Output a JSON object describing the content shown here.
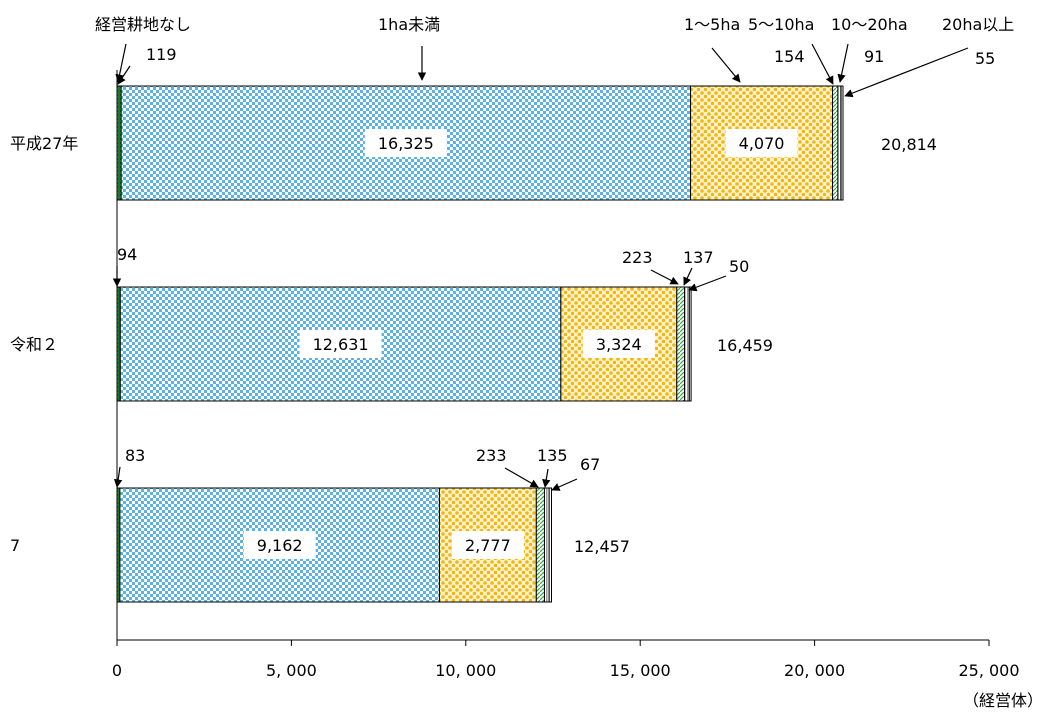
{
  "chart_data": {
    "type": "bar",
    "orientation": "horizontal",
    "stacked": true,
    "categories": [
      "平成27年",
      "令和２",
      "7"
    ],
    "series": [
      {
        "name": "経営耕地なし",
        "values": [
          119,
          94,
          83
        ],
        "color": "#1a7a2a"
      },
      {
        "name": "1ha未満",
        "values": [
          16325,
          12631,
          9162
        ],
        "color": "#66b8e8"
      },
      {
        "name": "1～5ha",
        "values": [
          4070,
          3324,
          2777
        ],
        "color": "#f5b820"
      },
      {
        "name": "5～10ha",
        "values": [
          154,
          223,
          233
        ],
        "color": "#7fd07f"
      },
      {
        "name": "10～20ha",
        "values": [
          91,
          137,
          135
        ],
        "color": "#d9d9d9"
      },
      {
        "name": "20ha以上",
        "values": [
          55,
          50,
          67
        ],
        "color": "#ffffff"
      }
    ],
    "totals": [
      "20,814",
      "16,459",
      "12,457"
    ],
    "value_labels": [
      {
        "inner": [
          "16,325",
          "4,070"
        ],
        "outer": [
          "119",
          "154",
          "91",
          "55"
        ]
      },
      {
        "inner": [
          "12,631",
          "3,324"
        ],
        "outer": [
          "94",
          "223",
          "137",
          "50"
        ]
      },
      {
        "inner": [
          "9,162",
          "2,777"
        ],
        "outer": [
          "83",
          "233",
          "135",
          "67"
        ]
      }
    ],
    "xlim": [
      0,
      25000
    ],
    "xticks": [
      0,
      5000,
      10000,
      15000,
      20000,
      25000
    ],
    "xtick_labels": [
      "0",
      "5, 000",
      "10, 000",
      "15, 000",
      "20, 000",
      "25, 000"
    ],
    "xunit": "（経営体）",
    "grid": false,
    "legend": "none"
  }
}
